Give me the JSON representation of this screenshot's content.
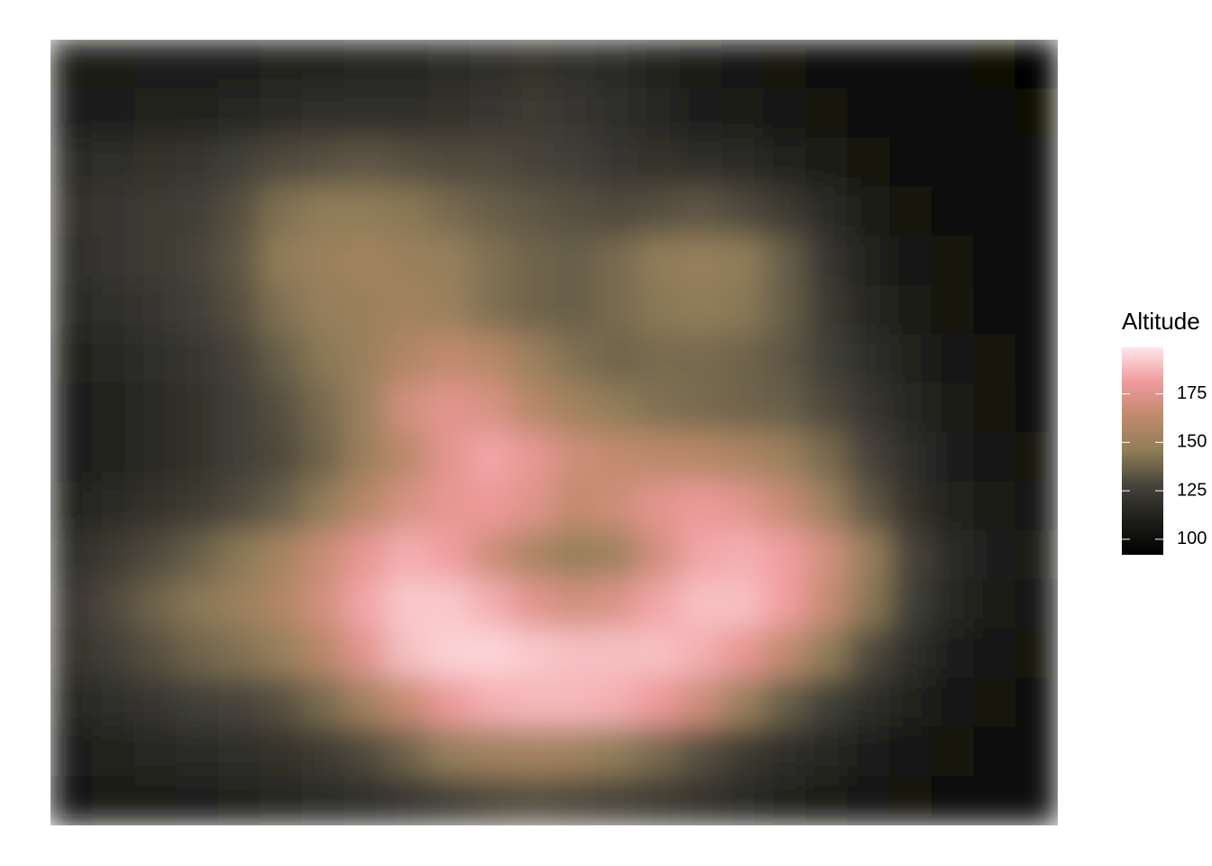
{
  "chart_data": {
    "type": "heatmap",
    "legend_title": "Altitude",
    "clim": [
      92,
      199
    ],
    "ticks": [
      100,
      125,
      150,
      175
    ],
    "colors": [
      "#000000",
      "#1d1d1a",
      "#45423a",
      "#8f7d58",
      "#c08a6c",
      "#f09a9c",
      "#ffe6ea"
    ],
    "z": [
      [
        108,
        108,
        110,
        110,
        110,
        112,
        112,
        114,
        114,
        116,
        118,
        120,
        118,
        116,
        112,
        108,
        106,
        104,
        102,
        100,
        98,
        97,
        96,
        95
      ],
      [
        110,
        110,
        112,
        112,
        114,
        116,
        118,
        118,
        118,
        120,
        122,
        124,
        122,
        118,
        114,
        110,
        108,
        106,
        104,
        102,
        100,
        98,
        97,
        96
      ],
      [
        116,
        118,
        120,
        122,
        126,
        130,
        132,
        134,
        132,
        130,
        130,
        128,
        126,
        122,
        120,
        118,
        116,
        112,
        108,
        104,
        102,
        100,
        98,
        97
      ],
      [
        120,
        122,
        124,
        126,
        132,
        142,
        146,
        146,
        144,
        140,
        136,
        134,
        132,
        130,
        132,
        134,
        130,
        124,
        116,
        108,
        104,
        102,
        100,
        98
      ],
      [
        118,
        122,
        124,
        128,
        134,
        146,
        150,
        152,
        150,
        148,
        142,
        138,
        136,
        140,
        146,
        148,
        146,
        136,
        122,
        112,
        106,
        103,
        101,
        99
      ],
      [
        116,
        118,
        122,
        126,
        132,
        142,
        148,
        150,
        152,
        150,
        142,
        138,
        136,
        140,
        144,
        146,
        144,
        136,
        124,
        114,
        108,
        104,
        102,
        100
      ],
      [
        112,
        114,
        118,
        122,
        128,
        136,
        144,
        150,
        158,
        164,
        160,
        150,
        142,
        138,
        140,
        140,
        138,
        134,
        126,
        118,
        112,
        106,
        103,
        101
      ],
      [
        110,
        112,
        116,
        120,
        126,
        132,
        140,
        150,
        170,
        176,
        172,
        160,
        152,
        146,
        142,
        140,
        138,
        136,
        130,
        122,
        114,
        108,
        104,
        102
      ],
      [
        110,
        112,
        116,
        120,
        126,
        130,
        138,
        150,
        162,
        176,
        184,
        178,
        168,
        164,
        162,
        160,
        156,
        150,
        140,
        128,
        118,
        110,
        106,
        104
      ],
      [
        112,
        116,
        120,
        124,
        130,
        136,
        146,
        160,
        172,
        178,
        180,
        174,
        164,
        168,
        176,
        180,
        176,
        166,
        150,
        134,
        120,
        112,
        108,
        106
      ],
      [
        118,
        124,
        130,
        136,
        144,
        154,
        166,
        178,
        186,
        182,
        168,
        156,
        148,
        152,
        170,
        184,
        186,
        182,
        170,
        148,
        128,
        116,
        110,
        108
      ],
      [
        122,
        130,
        138,
        144,
        150,
        158,
        170,
        184,
        192,
        192,
        186,
        176,
        170,
        174,
        184,
        190,
        190,
        182,
        166,
        144,
        126,
        114,
        108,
        106
      ],
      [
        120,
        126,
        132,
        138,
        142,
        148,
        160,
        176,
        190,
        194,
        195,
        192,
        190,
        190,
        190,
        186,
        178,
        164,
        146,
        130,
        118,
        110,
        106,
        104
      ],
      [
        114,
        118,
        122,
        126,
        128,
        132,
        140,
        152,
        166,
        180,
        186,
        188,
        188,
        186,
        180,
        168,
        150,
        136,
        126,
        118,
        112,
        106,
        104,
        102
      ],
      [
        110,
        112,
        114,
        116,
        118,
        120,
        124,
        130,
        138,
        148,
        152,
        154,
        152,
        146,
        140,
        132,
        124,
        118,
        114,
        110,
        106,
        104,
        102,
        101
      ],
      [
        106,
        108,
        108,
        110,
        112,
        114,
        116,
        118,
        122,
        126,
        130,
        132,
        130,
        128,
        124,
        120,
        116,
        112,
        108,
        106,
        104,
        102,
        101,
        100
      ]
    ]
  }
}
